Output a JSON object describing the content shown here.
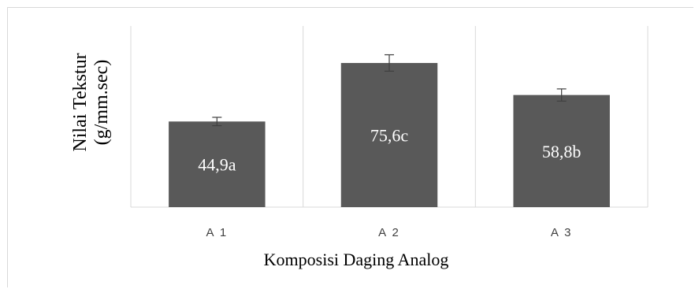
{
  "chart_data": {
    "type": "bar",
    "title": "",
    "xlabel": "Komposisi Daging Analog",
    "ylabel": [
      "Nilai Tekstur",
      "(g/mm.sec)"
    ],
    "categories": [
      "A 1",
      "A 2",
      "A 3"
    ],
    "values": [
      44.9,
      75.6,
      58.8
    ],
    "data_labels": [
      "44,9a",
      "75,6c",
      "58,8b"
    ],
    "error": [
      2.2,
      4.3,
      3.2
    ],
    "ylim": [
      0,
      95
    ],
    "grid": "vertical-category-separators",
    "bar_color": "#595959",
    "legend": "none"
  }
}
